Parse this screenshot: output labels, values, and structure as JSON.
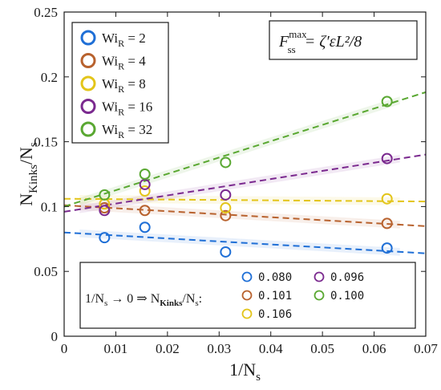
{
  "chart_data": {
    "type": "scatter",
    "xlabel": "1/N",
    "xlabel_sub": "s",
    "ylabel": "N",
    "ylabel_sub1": "Kinks",
    "ylabel_mid": "/N",
    "ylabel_sub2": "s",
    "xlim": [
      0,
      0.07
    ],
    "ylim": [
      0,
      0.25
    ],
    "xticks": [
      0,
      0.01,
      0.02,
      0.03,
      0.04,
      0.05,
      0.06,
      0.07
    ],
    "xtick_labels": [
      "0",
      "0.01",
      "0.02",
      "0.03",
      "0.04",
      "0.05",
      "0.06",
      "0.07"
    ],
    "yticks": [
      0,
      0.05,
      0.1,
      0.15,
      0.2,
      0.25
    ],
    "ytick_labels": [
      "0",
      "0.05",
      "0.1",
      "0.15",
      "0.2",
      "0.25"
    ],
    "grid": false,
    "formula": {
      "lhs": "F",
      "sup": "max",
      "sub": "ss",
      "rhs": "= ζ′ε̇L²/8"
    },
    "legend_position": "top-left",
    "series": [
      {
        "name_base": "Wi",
        "name_sub": "R",
        "name_value": " = 2",
        "color": "#1f6fd6",
        "x": [
          0.0078125,
          0.015625,
          0.03125,
          0.0625
        ],
        "y": [
          0.076,
          0.084,
          0.065,
          0.068
        ],
        "fit": [
          0.08,
          -0.23
        ]
      },
      {
        "name_base": "Wi",
        "name_sub": "R",
        "name_value": " = 4",
        "color": "#b8622e",
        "x": [
          0.0078125,
          0.015625,
          0.03125,
          0.0625
        ],
        "y": [
          0.099,
          0.097,
          0.093,
          0.087
        ],
        "fit": [
          0.101,
          -0.23
        ]
      },
      {
        "name_base": "Wi",
        "name_sub": "R",
        "name_value": " = 8",
        "color": "#e3c51a",
        "x": [
          0.0078125,
          0.015625,
          0.03125,
          0.0625
        ],
        "y": [
          0.102,
          0.112,
          0.099,
          0.106
        ],
        "fit": [
          0.106,
          -0.03
        ]
      },
      {
        "name_base": "Wi",
        "name_sub": "R",
        "name_value": " = 16",
        "color": "#7b2a8f",
        "x": [
          0.0078125,
          0.015625,
          0.03125,
          0.0625
        ],
        "y": [
          0.097,
          0.117,
          0.109,
          0.137
        ],
        "fit": [
          0.096,
          0.63
        ]
      },
      {
        "name_base": "Wi",
        "name_sub": "R",
        "name_value": " = 32",
        "color": "#5aa832",
        "x": [
          0.0078125,
          0.015625,
          0.03125,
          0.0625
        ],
        "y": [
          0.109,
          0.125,
          0.134,
          0.181
        ],
        "fit": [
          0.1,
          1.26
        ]
      }
    ],
    "intercept_box": {
      "label_pre": "1/N",
      "label_sub1": "s",
      "label_mid": " → 0 ⇒ N",
      "label_sub2": "Kinks",
      "label_mid2": "/N",
      "label_sub3": "s",
      "label_post": ":",
      "values": [
        "0.080",
        "0.101",
        "0.106",
        "0.096",
        "0.100"
      ]
    }
  }
}
